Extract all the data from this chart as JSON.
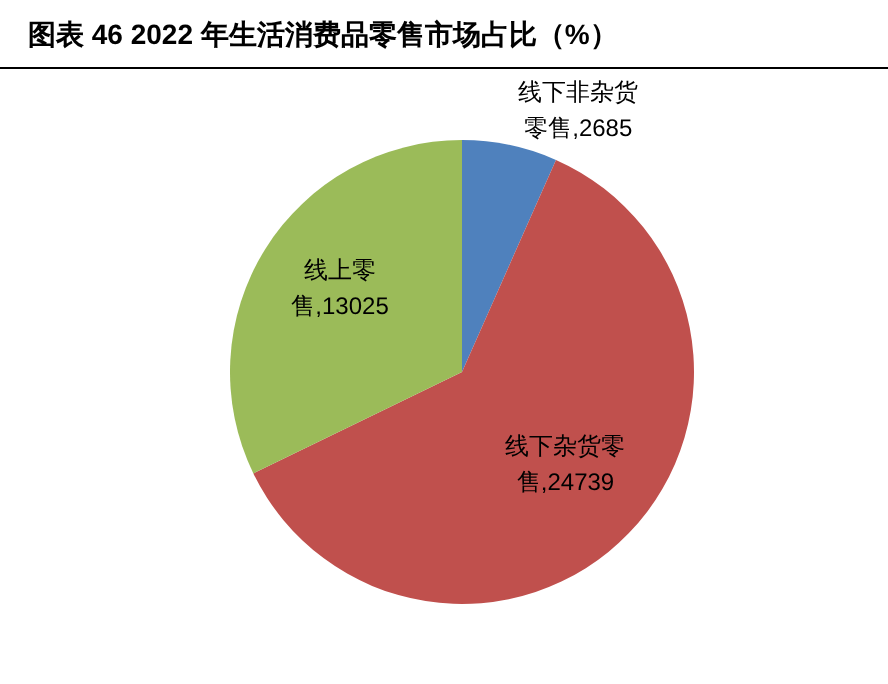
{
  "chart_data": {
    "type": "pie",
    "title": "图表 46 2022 年生活消费品零售市场占比（%）",
    "categories": [
      "线下非杂货零售",
      "线下杂货零售",
      "线上零售"
    ],
    "values": [
      2685,
      24739,
      13025
    ],
    "colors": [
      "#4f81bd",
      "#c0504d",
      "#9bbb59"
    ],
    "value_labels": [
      ",2685",
      ",24739",
      ",13025"
    ]
  }
}
